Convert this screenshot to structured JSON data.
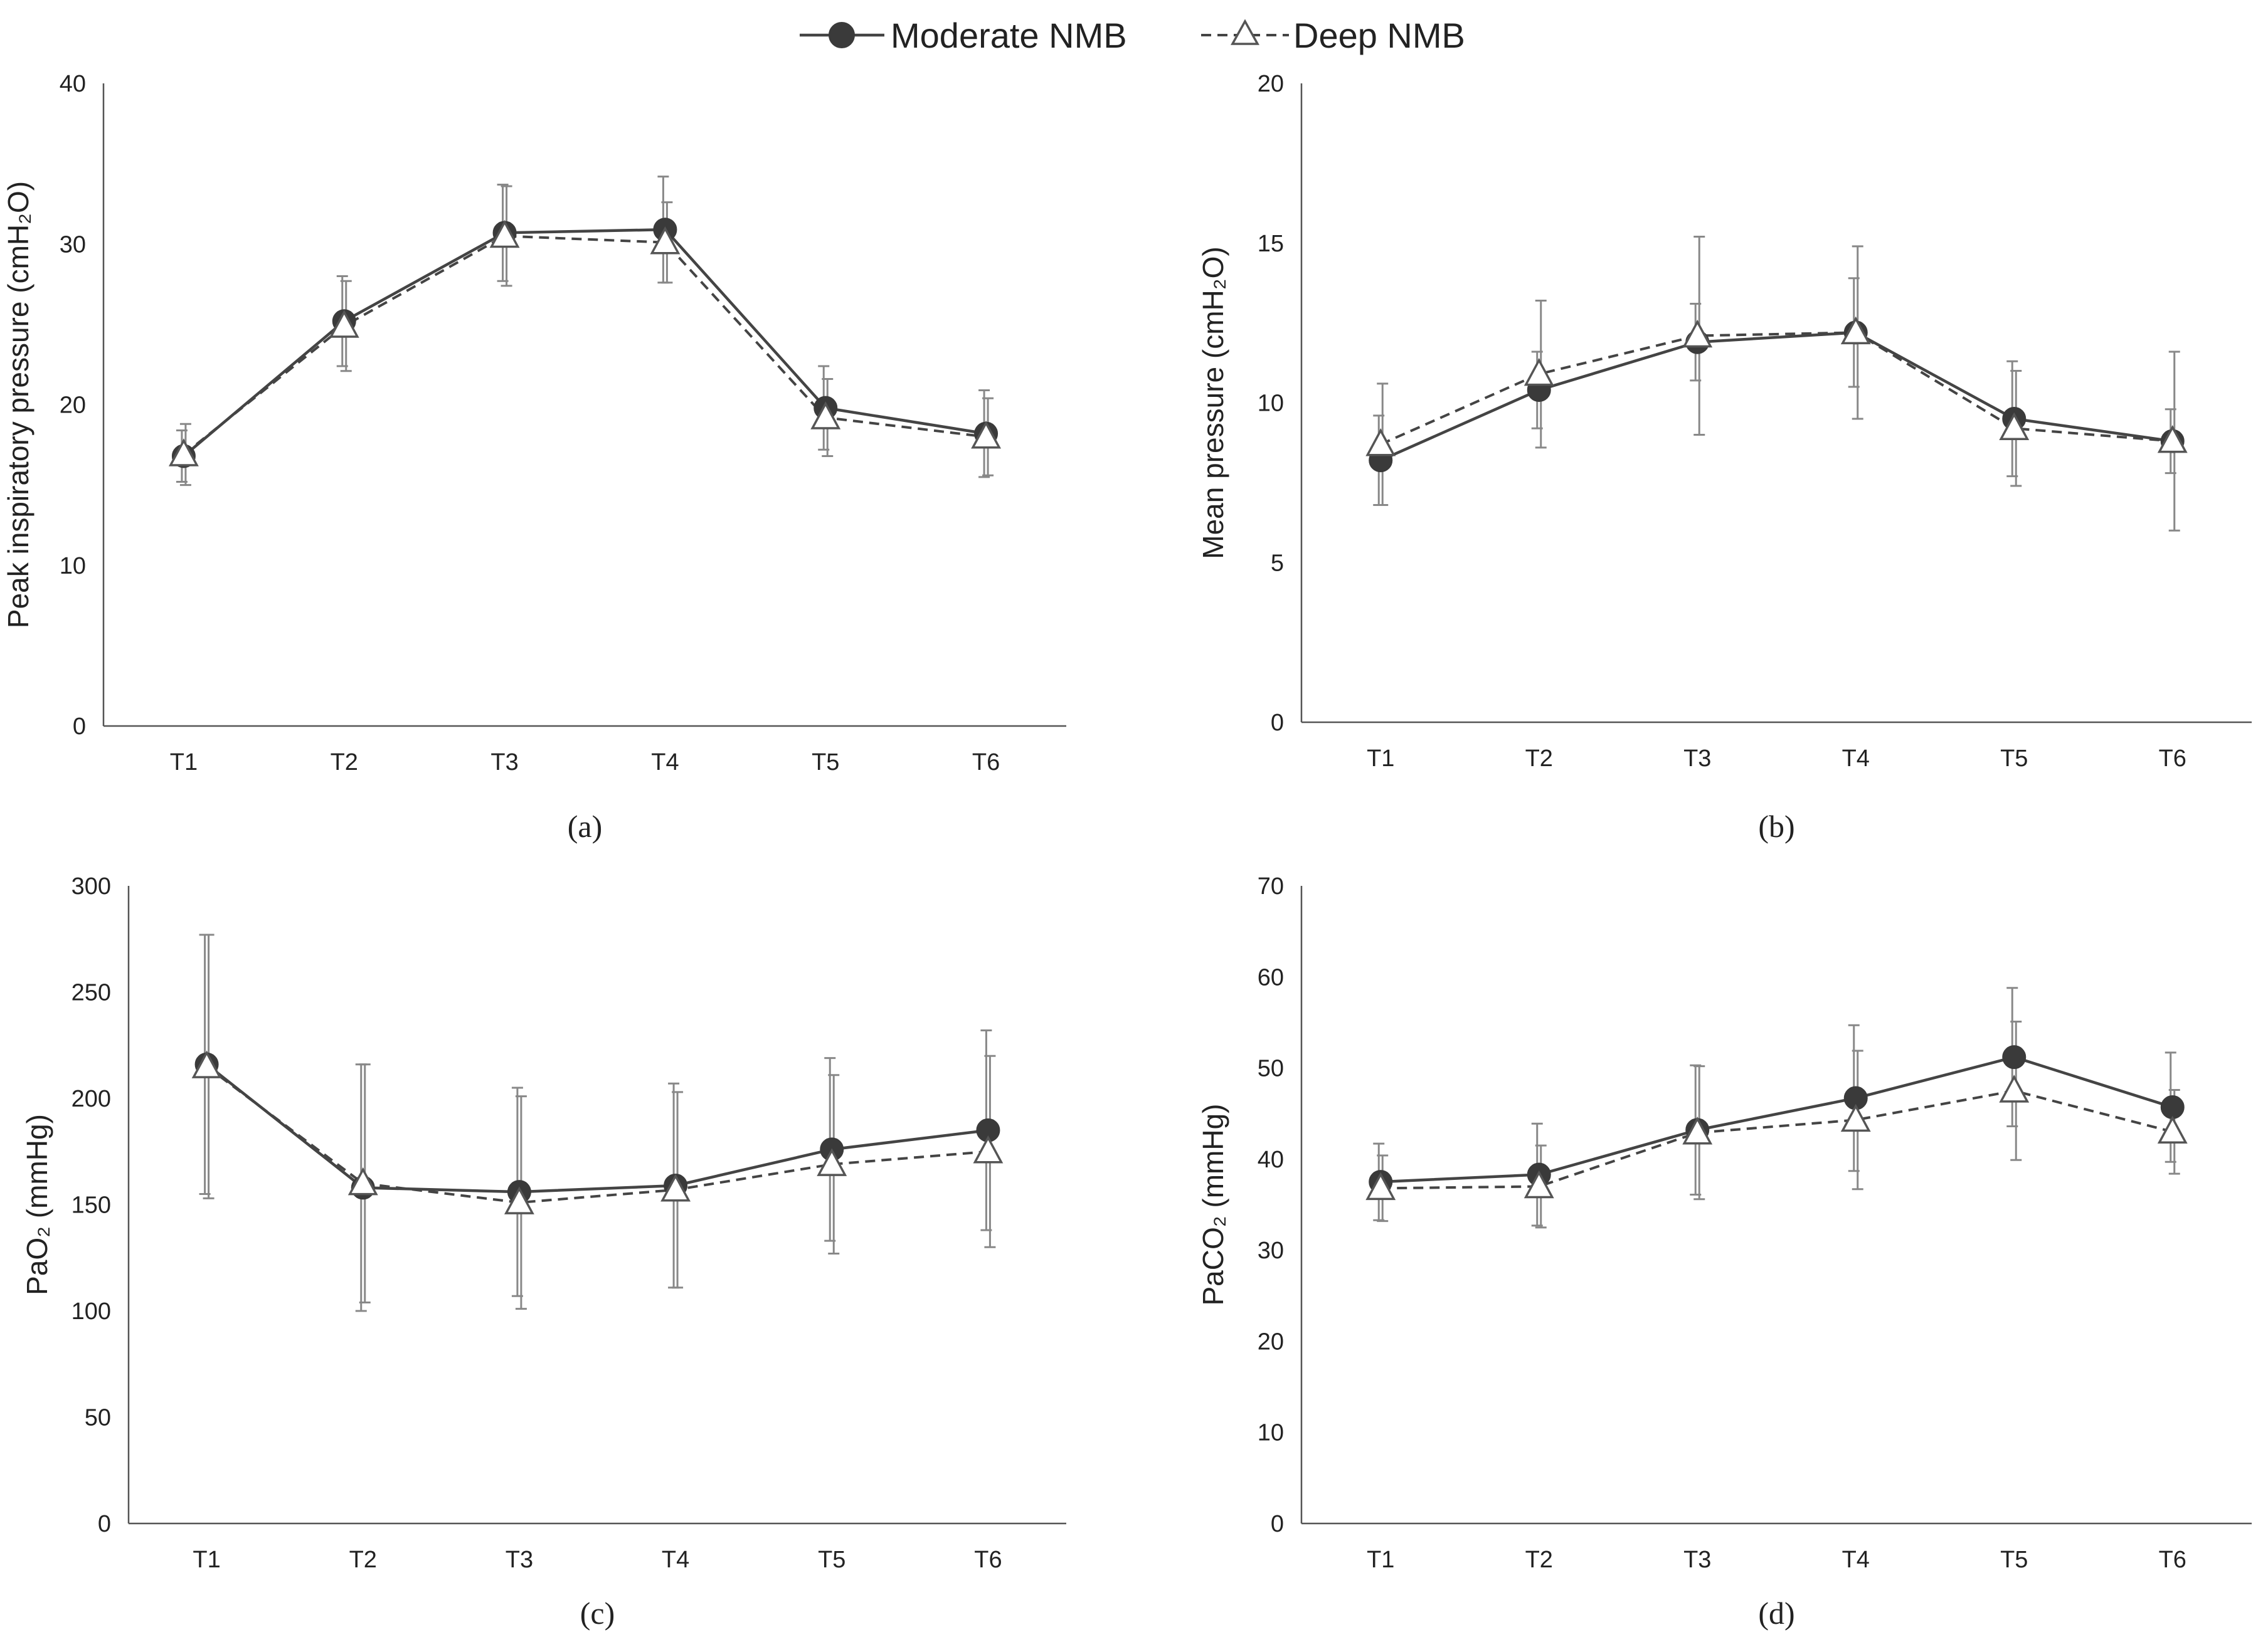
{
  "legend": {
    "moderate_label": "Moderate NMB",
    "deep_label": "Deep NMB"
  },
  "colors": {
    "moderate": "#3a3a3a",
    "deep": "#555555",
    "error_bar": "#888888"
  },
  "chart_data": [
    {
      "type": "line",
      "caption": "(a)",
      "categories": [
        "T1",
        "T2",
        "T3",
        "T4",
        "T5",
        "T6"
      ],
      "ylabel": "Peak inspiratory pressure (cmH₂O)",
      "ylim": [
        0,
        40
      ],
      "yticks": [
        0,
        10,
        20,
        30,
        40
      ],
      "series": [
        {
          "name": "Moderate NMB",
          "values": [
            16.8,
            25.2,
            30.7,
            30.9,
            19.8,
            18.2
          ],
          "sd": [
            1.6,
            2.8,
            3.0,
            3.3,
            2.6,
            2.7
          ]
        },
        {
          "name": "Deep NMB",
          "values": [
            16.9,
            24.9,
            30.5,
            30.1,
            19.2,
            18.0
          ],
          "sd": [
            1.9,
            2.8,
            3.1,
            2.5,
            2.4,
            2.4
          ]
        }
      ]
    },
    {
      "type": "line",
      "caption": "(b)",
      "categories": [
        "T1",
        "T2",
        "T3",
        "T4",
        "T5",
        "T6"
      ],
      "ylabel": "Mean pressure (cmH₂O)",
      "ylim": [
        0,
        20
      ],
      "yticks": [
        0,
        5,
        10,
        15,
        20
      ],
      "series": [
        {
          "name": "Moderate NMB",
          "values": [
            8.2,
            10.4,
            11.9,
            12.2,
            9.5,
            8.8
          ],
          "sd": [
            1.4,
            1.2,
            1.2,
            1.7,
            1.8,
            1.0
          ]
        },
        {
          "name": "Deep NMB",
          "values": [
            8.7,
            10.9,
            12.1,
            12.2,
            9.2,
            8.8
          ],
          "sd": [
            1.9,
            2.3,
            3.1,
            2.7,
            1.8,
            2.8
          ]
        }
      ]
    },
    {
      "type": "line",
      "caption": "(c)",
      "categories": [
        "T1",
        "T2",
        "T3",
        "T4",
        "T5",
        "T6"
      ],
      "ylabel": "PaO₂ (mmHg)",
      "ylim": [
        0,
        300
      ],
      "yticks": [
        0,
        50,
        100,
        150,
        200,
        250,
        300
      ],
      "series": [
        {
          "name": "Moderate NMB",
          "values": [
            216,
            158,
            156,
            159,
            176,
            185
          ],
          "sd": [
            61,
            58,
            49,
            48,
            43,
            47
          ]
        },
        {
          "name": "Deep NMB",
          "values": [
            215,
            160,
            151,
            157,
            169,
            175
          ],
          "sd": [
            62,
            56,
            50,
            46,
            42,
            45
          ]
        }
      ]
    },
    {
      "type": "line",
      "caption": "(d)",
      "categories": [
        "T1",
        "T2",
        "T3",
        "T4",
        "T5",
        "T6"
      ],
      "ylabel": "PaCO₂ (mmHg)",
      "ylim": [
        0,
        70
      ],
      "yticks": [
        0,
        10,
        20,
        30,
        40,
        50,
        60,
        70
      ],
      "series": [
        {
          "name": "Moderate NMB",
          "values": [
            37.5,
            38.3,
            43.2,
            46.7,
            51.2,
            45.7
          ],
          "sd": [
            4.2,
            5.6,
            7.1,
            8.0,
            7.6,
            6.0
          ]
        },
        {
          "name": "Deep NMB",
          "values": [
            36.8,
            37.0,
            42.9,
            44.3,
            47.5,
            43.0
          ],
          "sd": [
            3.6,
            4.5,
            7.3,
            7.6,
            7.6,
            4.6
          ]
        }
      ]
    }
  ]
}
